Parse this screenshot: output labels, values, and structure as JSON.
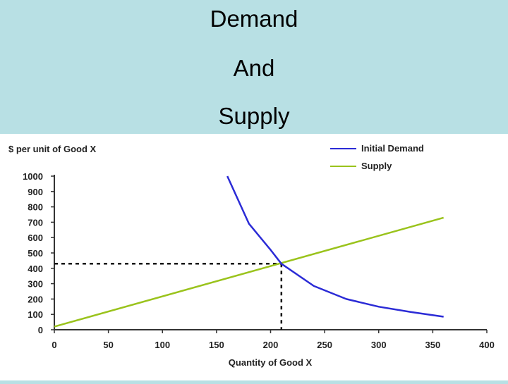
{
  "slide": {
    "title_lines": [
      "Demand",
      "And",
      "Supply"
    ]
  },
  "colors": {
    "background": "#b8e0e4",
    "demand": "#2b2bd6",
    "supply": "#9ac31c"
  },
  "chart_data": {
    "type": "line",
    "title": "",
    "xlabel": "Quantity of Good X",
    "ylabel": "$ per unit of Good X",
    "xlim": [
      0,
      400
    ],
    "ylim": [
      0,
      1000
    ],
    "x_ticks": [
      0,
      50,
      100,
      150,
      200,
      250,
      300,
      350,
      400
    ],
    "y_ticks": [
      0,
      100,
      200,
      300,
      400,
      500,
      600,
      700,
      800,
      900,
      1000
    ],
    "grid": false,
    "legend_position": "top-right",
    "series": [
      {
        "name": "Initial Demand",
        "color": "#2b2bd6",
        "points": [
          [
            160,
            1000
          ],
          [
            180,
            690
          ],
          [
            200,
            520
          ],
          [
            210,
            430
          ],
          [
            240,
            285
          ],
          [
            270,
            200
          ],
          [
            300,
            150
          ],
          [
            330,
            115
          ],
          [
            360,
            85
          ]
        ]
      },
      {
        "name": "Supply",
        "color": "#9ac31c",
        "points": [
          [
            0,
            20
          ],
          [
            360,
            730
          ]
        ]
      }
    ],
    "equilibrium": {
      "x": 210,
      "y": 430
    }
  }
}
